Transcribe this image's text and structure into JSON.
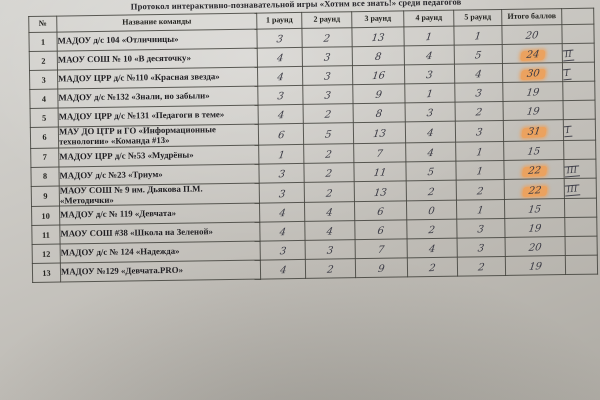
{
  "title": "Протокол интерактивно-познавательной игры «Хотим все знать!» среди педагогов",
  "colors": {
    "highlight_marker": "#eba25f",
    "pen_ink": "#3b3b45",
    "paper": "#c6c4bf"
  },
  "table": {
    "headers": [
      "№",
      "Название команды",
      "1 раунд",
      "2 раунд",
      "3 раунд",
      "4 раунд",
      "5 раунд",
      "Итого баллов"
    ],
    "rows": [
      {
        "num": "1",
        "team": "МАДОУ д/с 104  «Отличницы»",
        "rounds": [
          "3",
          "2",
          "13",
          "1",
          "1"
        ],
        "total": "20",
        "highlight": false,
        "place": ""
      },
      {
        "num": "2",
        "team": "МАОУ СОШ № 10 «В десяточку»",
        "rounds": [
          "4",
          "3",
          "8",
          "4",
          "5"
        ],
        "total": "24",
        "highlight": true,
        "place": "II"
      },
      {
        "num": "3",
        "team": "МАДОУ ЦРР д/с №110 «Красная звезда»",
        "rounds": [
          "4",
          "3",
          "16",
          "3",
          "4"
        ],
        "total": "30",
        "highlight": true,
        "place": "I"
      },
      {
        "num": "4",
        "team": "МАДОУ  д/с №132 «Знали, но забыли»",
        "rounds": [
          "3",
          "3",
          "9",
          "1",
          "3"
        ],
        "total": "19",
        "highlight": false,
        "place": ""
      },
      {
        "num": "5",
        "team": "МАДОУ ЦРР д/с №131 «Педагоги в теме»",
        "rounds": [
          "4",
          "2",
          "8",
          "3",
          "2"
        ],
        "total": "19",
        "highlight": false,
        "place": ""
      },
      {
        "num": "6",
        "team": "МАУ ДО ЦТР и ГО «Информационные\nтехнологии» «Команда #13»",
        "rounds": [
          "6",
          "5",
          "13",
          "4",
          "3"
        ],
        "total": "31",
        "highlight": true,
        "place": "I"
      },
      {
        "num": "7",
        "team": "МАДОУ ЦРР д/с №53 «Мудрёны»",
        "rounds": [
          "1",
          "2",
          "7",
          "4",
          "1"
        ],
        "total": "15",
        "highlight": false,
        "place": ""
      },
      {
        "num": "8",
        "team": "МАДОУ д/с №23 «Триум»",
        "rounds": [
          "3",
          "2",
          "11",
          "5",
          "1"
        ],
        "total": "22",
        "highlight": true,
        "place": "III"
      },
      {
        "num": "9",
        "team": "МАОУ СОШ № 9 им. Дьякова П.М.\n«Методички»",
        "rounds": [
          "3",
          "2",
          "13",
          "2",
          "2"
        ],
        "total": "22",
        "highlight": true,
        "place": "III"
      },
      {
        "num": "10",
        "team": "МАДОУ  д/с № 119 «Девчата»",
        "rounds": [
          "4",
          "4",
          "6",
          "0",
          "1"
        ],
        "total": "15",
        "highlight": false,
        "place": ""
      },
      {
        "num": "11",
        "team": "МАОУ СОШ #38 «Школа на Зеленой»",
        "rounds": [
          "4",
          "4",
          "6",
          "2",
          "3"
        ],
        "total": "19",
        "highlight": false,
        "place": ""
      },
      {
        "num": "12",
        "team": "МАДОУ д/с № 124 «Надежда»",
        "rounds": [
          "3",
          "3",
          "7",
          "4",
          "3"
        ],
        "total": "20",
        "highlight": false,
        "place": ""
      },
      {
        "num": "13",
        "team": "МАДОУ №129 «Девчата.PRO»",
        "rounds": [
          "4",
          "2",
          "9",
          "2",
          "2"
        ],
        "total": "19",
        "highlight": false,
        "place": ""
      }
    ]
  }
}
